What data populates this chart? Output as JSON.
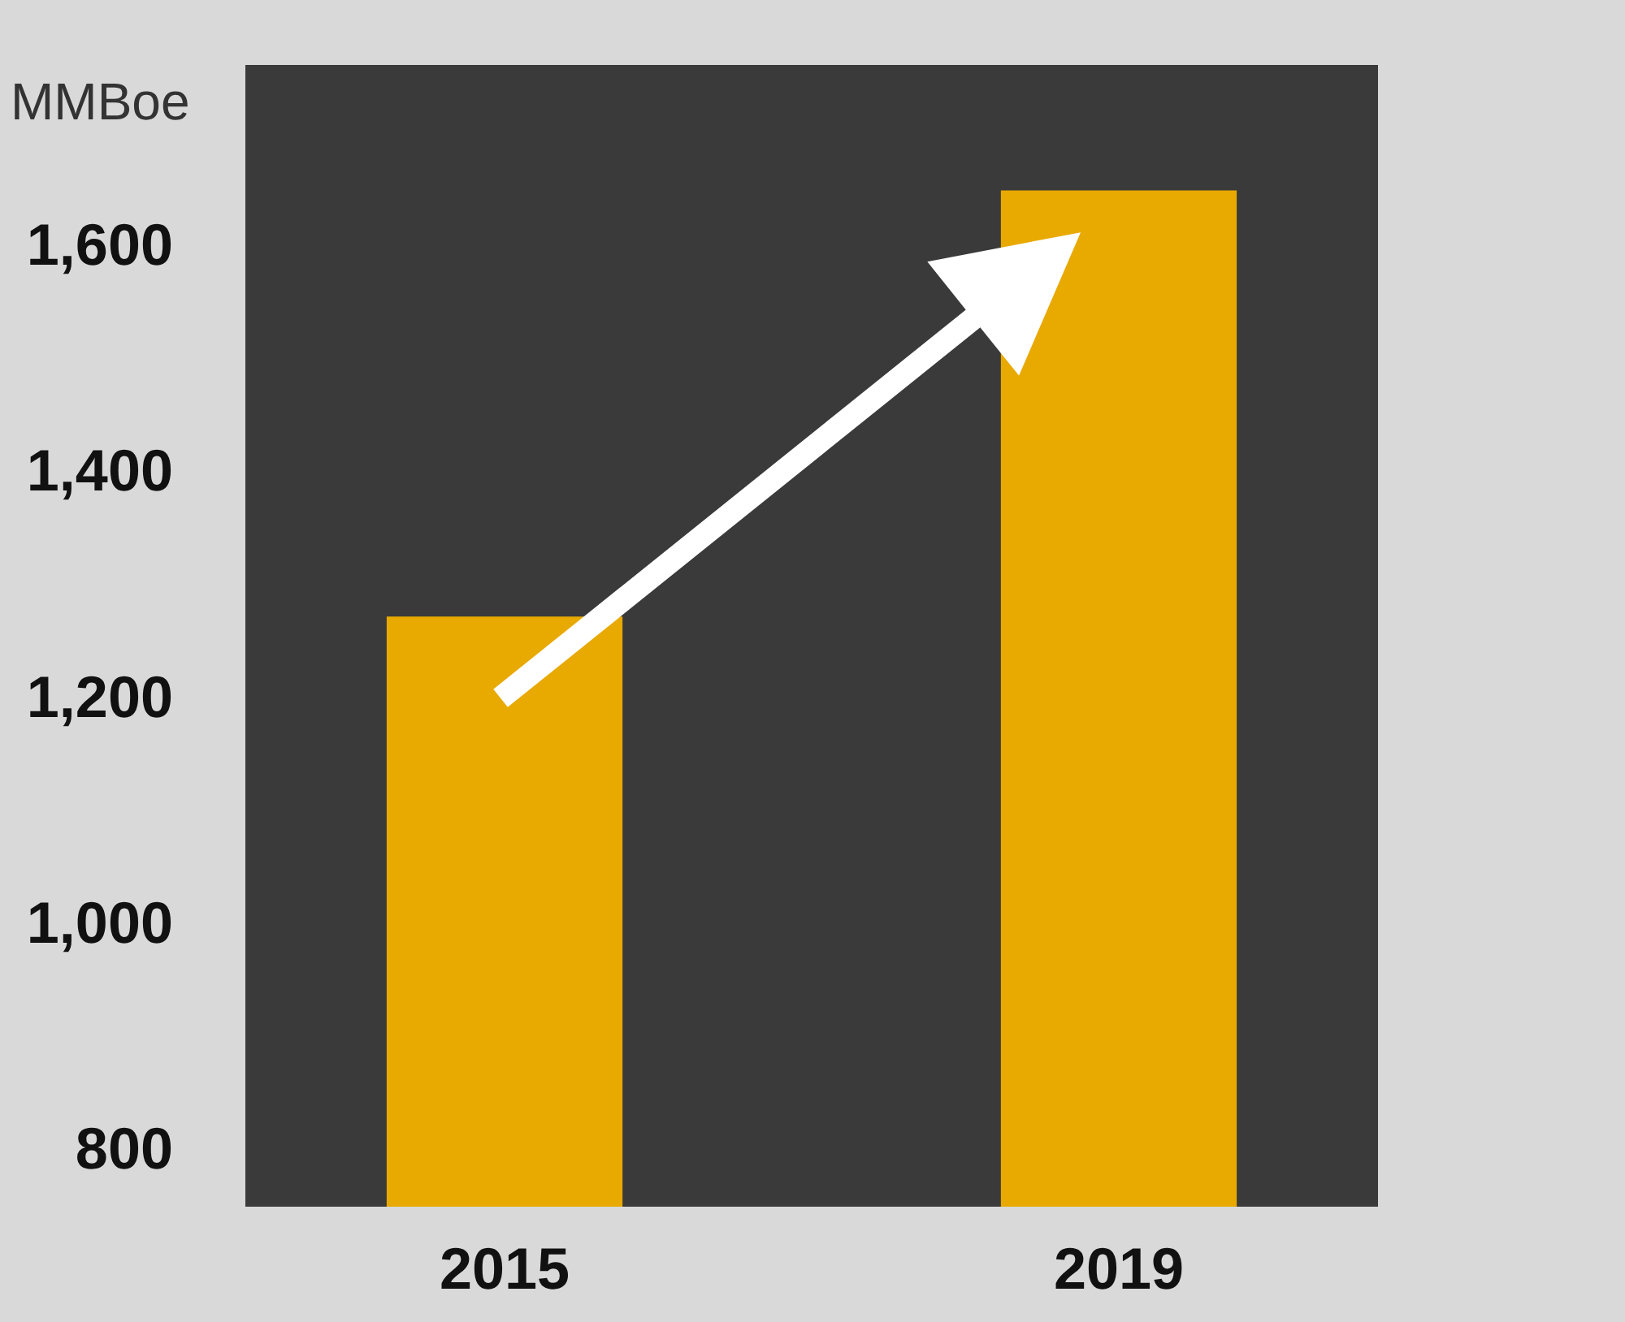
{
  "chart_data": {
    "type": "bar",
    "ylabel": "MMBoe",
    "categories": [
      "2015",
      "2019"
    ],
    "values": [
      1272,
      1649
    ],
    "color": "#e8a900",
    "ylim": [
      750,
      1760
    ],
    "yticks": [
      800,
      {
        "value": 1000,
        "label": "1,000"
      },
      {
        "value": 1200,
        "label": "1,200"
      },
      {
        "value": 1400,
        "label": "1,400"
      },
      {
        "value": 1600,
        "label": "1,600"
      }
    ],
    "grid": false
  }
}
